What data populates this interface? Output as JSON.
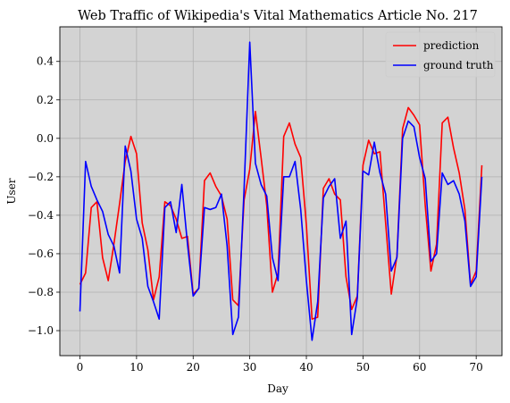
{
  "chart_data": {
    "type": "line",
    "title": "Web Traffic of Wikipedia's Vital Mathematics Article No. 217",
    "xlabel": "Day",
    "ylabel": "User",
    "xlim": [
      -3.55,
      74.55
    ],
    "ylim": [
      -1.13,
      0.58
    ],
    "xticks": [
      0,
      10,
      20,
      30,
      40,
      50,
      60,
      70
    ],
    "yticks": [
      -1.0,
      -0.8,
      -0.6,
      -0.4,
      -0.2,
      0.0,
      0.2,
      0.4
    ],
    "ytick_labels": [
      "−1.0",
      "−0.8",
      "−0.6",
      "−0.4",
      "−0.2",
      "0.0",
      "0.2",
      "0.4"
    ],
    "grid": true,
    "background_color": "#d3d3d3",
    "legend_position": "top-right",
    "x": [
      0,
      1,
      2,
      3,
      4,
      5,
      6,
      7,
      8,
      9,
      10,
      11,
      12,
      13,
      14,
      15,
      16,
      17,
      18,
      19,
      20,
      21,
      22,
      23,
      24,
      25,
      26,
      27,
      28,
      29,
      30,
      31,
      32,
      33,
      34,
      35,
      36,
      37,
      38,
      39,
      40,
      41,
      42,
      43,
      44,
      45,
      46,
      47,
      48,
      49,
      50,
      51,
      52,
      53,
      54,
      55,
      56,
      57,
      58,
      59,
      60,
      61,
      62,
      63,
      64,
      65,
      66,
      67,
      68,
      69,
      70,
      71
    ],
    "series": [
      {
        "name": "prediction",
        "color": "#ff0000",
        "values": [
          -0.76,
          -0.7,
          -0.36,
          -0.33,
          -0.62,
          -0.74,
          -0.55,
          -0.34,
          -0.12,
          0.01,
          -0.08,
          -0.44,
          -0.58,
          -0.84,
          -0.72,
          -0.33,
          -0.35,
          -0.42,
          -0.52,
          -0.51,
          -0.81,
          -0.78,
          -0.22,
          -0.18,
          -0.25,
          -0.3,
          -0.42,
          -0.84,
          -0.87,
          -0.32,
          -0.16,
          0.14,
          -0.1,
          -0.35,
          -0.8,
          -0.7,
          0.01,
          0.08,
          -0.03,
          -0.1,
          -0.45,
          -0.94,
          -0.93,
          -0.26,
          -0.21,
          -0.29,
          -0.32,
          -0.72,
          -0.89,
          -0.82,
          -0.14,
          -0.01,
          -0.08,
          -0.07,
          -0.44,
          -0.81,
          -0.61,
          0.05,
          0.16,
          0.12,
          0.07,
          -0.35,
          -0.69,
          -0.55,
          0.08,
          0.11,
          -0.05,
          -0.18,
          -0.37,
          -0.76,
          -0.69,
          -0.14
        ]
      },
      {
        "name": "ground truth",
        "color": "#0000ff",
        "values": [
          -0.9,
          -0.12,
          -0.25,
          -0.32,
          -0.38,
          -0.5,
          -0.56,
          -0.7,
          -0.04,
          -0.17,
          -0.42,
          -0.52,
          -0.77,
          -0.85,
          -0.94,
          -0.36,
          -0.33,
          -0.49,
          -0.24,
          -0.55,
          -0.82,
          -0.78,
          -0.36,
          -0.37,
          -0.36,
          -0.29,
          -0.56,
          -1.02,
          -0.93,
          -0.26,
          0.5,
          -0.13,
          -0.24,
          -0.3,
          -0.62,
          -0.74,
          -0.2,
          -0.2,
          -0.12,
          -0.37,
          -0.74,
          -1.05,
          -0.85,
          -0.31,
          -0.25,
          -0.21,
          -0.52,
          -0.43,
          -1.02,
          -0.83,
          -0.17,
          -0.19,
          -0.02,
          -0.18,
          -0.29,
          -0.69,
          -0.62,
          0.0,
          0.09,
          0.06,
          -0.1,
          -0.21,
          -0.64,
          -0.6,
          -0.18,
          -0.24,
          -0.22,
          -0.29,
          -0.43,
          -0.77,
          -0.72,
          -0.2
        ]
      }
    ]
  }
}
